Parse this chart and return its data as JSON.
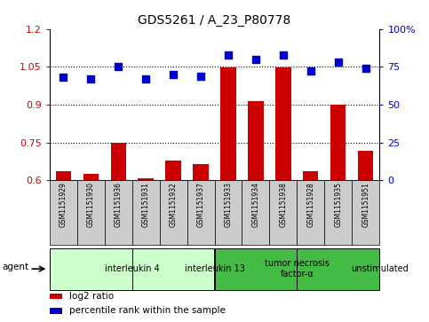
{
  "title": "GDS5261 / A_23_P80778",
  "samples": [
    "GSM1151929",
    "GSM1151930",
    "GSM1151936",
    "GSM1151931",
    "GSM1151932",
    "GSM1151937",
    "GSM1151933",
    "GSM1151934",
    "GSM1151938",
    "GSM1151928",
    "GSM1151935",
    "GSM1151951"
  ],
  "log2_ratio": [
    0.635,
    0.625,
    0.748,
    0.608,
    0.68,
    0.663,
    1.048,
    0.915,
    1.048,
    0.635,
    0.9,
    0.718
  ],
  "percentile_rank": [
    68,
    67,
    75,
    67,
    70,
    69,
    83,
    80,
    83,
    72,
    78,
    74
  ],
  "agents": [
    {
      "label": "interleukin 4",
      "start": 0,
      "end": 3,
      "color": "#ccffcc"
    },
    {
      "label": "interleukin 13",
      "start": 3,
      "end": 6,
      "color": "#ccffcc"
    },
    {
      "label": "tumor necrosis\nfactor-α",
      "start": 6,
      "end": 9,
      "color": "#44bb44"
    },
    {
      "label": "unstimulated",
      "start": 9,
      "end": 12,
      "color": "#44bb44"
    }
  ],
  "bar_color": "#cc0000",
  "dot_color": "#0000cc",
  "ylim_left": [
    0.6,
    1.2
  ],
  "ylim_right": [
    0,
    100
  ],
  "yticks_left": [
    0.6,
    0.75,
    0.9,
    1.05,
    1.2
  ],
  "yticks_right": [
    0,
    25,
    50,
    75,
    100
  ],
  "ytick_labels_left": [
    "0.6",
    "0.75",
    "0.9",
    "1.05",
    "1.2"
  ],
  "ytick_labels_right": [
    "0",
    "25",
    "50",
    "75",
    "100%"
  ],
  "hlines": [
    0.75,
    0.9,
    1.05
  ],
  "bar_width": 0.55,
  "dot_marker": "s",
  "dot_size": 35,
  "bar_color_left": "#cc0000",
  "bar_color_right": "#0000cc",
  "legend_items": [
    {
      "color": "#cc0000",
      "label": "log2 ratio"
    },
    {
      "color": "#0000cc",
      "label": "percentile rank within the sample"
    }
  ],
  "agent_label": "agent",
  "sample_box_color": "#cccccc"
}
